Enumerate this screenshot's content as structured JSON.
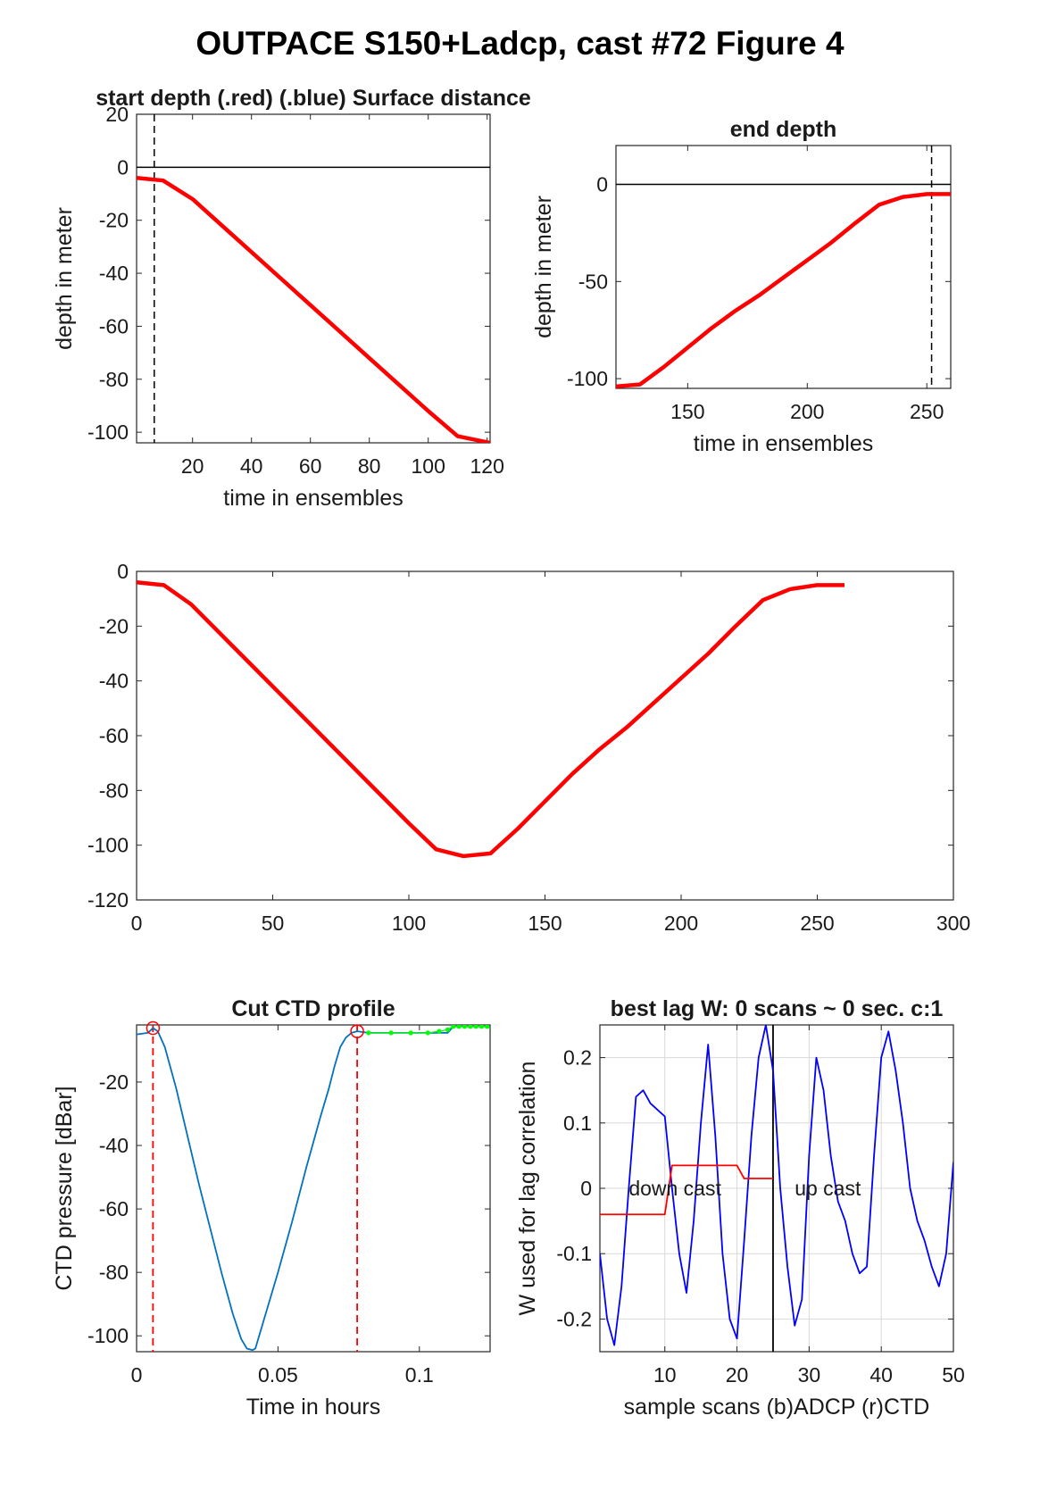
{
  "figure": {
    "title": "OUTPACE S150+Ladcp, cast #72   Figure 4",
    "background": "#ffffff"
  },
  "colors": {
    "depth_line": "#ff0000",
    "ctd_line": "#0072bd",
    "ctd_flag": "#00ff00",
    "adcp_w": "#0000ff",
    "ctd_w": "#ff0000",
    "axis": "#262626",
    "grid": "#d9d9d9"
  },
  "chart_data": [
    {
      "id": "start",
      "type": "line",
      "title": "start depth (.red) (.blue) Surface distance",
      "xlabel": "time in ensembles",
      "ylabel": "depth in meter",
      "xlim": [
        1,
        121
      ],
      "ylim": [
        -104,
        20
      ],
      "xticks": [
        20,
        40,
        60,
        80,
        100,
        120
      ],
      "yticks": [
        20,
        0,
        -20,
        -40,
        -60,
        -80,
        -100
      ],
      "hline": 0,
      "vline_dashed": 7,
      "grid": false,
      "series": [
        {
          "x": [
            1,
            10,
            20,
            30,
            40,
            50,
            60,
            70,
            80,
            90,
            100,
            110,
            121
          ],
          "y": [
            -4,
            -5,
            -12,
            -22,
            -32,
            -42,
            -52,
            -62,
            -72,
            -82,
            -92,
            -101.5,
            -104
          ]
        }
      ]
    },
    {
      "id": "end",
      "type": "line",
      "title": "end depth",
      "xlabel": "time in ensembles",
      "ylabel": "depth in meter",
      "xlim": [
        120,
        260
      ],
      "ylim": [
        -105,
        20
      ],
      "xticks": [
        150,
        200,
        250
      ],
      "yticks": [
        0,
        -50,
        -100
      ],
      "hline": 0,
      "vline_dashed": 252,
      "grid": false,
      "series": [
        {
          "x": [
            120,
            130,
            140,
            150,
            160,
            170,
            180,
            190,
            200,
            210,
            220,
            230,
            240,
            250,
            260
          ],
          "y": [
            -104,
            -103,
            -94,
            -84,
            -74,
            -65,
            -57,
            -48,
            -39,
            -30,
            -20,
            -10.5,
            -6.5,
            -5,
            -5
          ]
        }
      ]
    },
    {
      "id": "full",
      "type": "line",
      "title": "",
      "xlabel": "",
      "ylabel": "",
      "xlim": [
        0,
        300
      ],
      "ylim": [
        -120,
        0
      ],
      "xticks": [
        0,
        50,
        100,
        150,
        200,
        250,
        300
      ],
      "yticks": [
        0,
        -20,
        -40,
        -60,
        -80,
        -100,
        -120
      ],
      "grid": false,
      "series": [
        {
          "x": [
            0,
            10,
            20,
            30,
            40,
            50,
            60,
            70,
            80,
            90,
            100,
            110,
            120,
            130,
            140,
            150,
            160,
            170,
            180,
            190,
            200,
            210,
            220,
            230,
            240,
            250,
            260
          ],
          "y": [
            -4,
            -5,
            -12,
            -22,
            -32,
            -42,
            -52,
            -62,
            -72,
            -82,
            -92,
            -101.5,
            -104,
            -103,
            -94,
            -84,
            -74,
            -65,
            -57,
            -48,
            -39,
            -30,
            -20,
            -10.5,
            -6.5,
            -5,
            -5
          ]
        }
      ]
    },
    {
      "id": "ctd",
      "type": "line",
      "title": "Cut CTD profile",
      "xlabel": "Time in hours",
      "ylabel": "CTD pressure [dBar]",
      "xlim": [
        0,
        0.125
      ],
      "ylim": [
        -105,
        -2
      ],
      "xticks": [
        0,
        0.05,
        0.1
      ],
      "xtick_labels": [
        "0",
        "0.05",
        "0.1"
      ],
      "yticks": [
        -20,
        -40,
        -60,
        -80,
        -100
      ],
      "grid": false,
      "cut_lines": [
        0.0058,
        0.078
      ],
      "series": [
        {
          "x": [
            0,
            0.004,
            0.0058,
            0.0075,
            0.01,
            0.014,
            0.018,
            0.022,
            0.026,
            0.03,
            0.034,
            0.037,
            0.039,
            0.041,
            0.042,
            0.045,
            0.05,
            0.055,
            0.06,
            0.065,
            0.068,
            0.07,
            0.072,
            0.074,
            0.076,
            0.078,
            0.082,
            0.088,
            0.095,
            0.1,
            0.106,
            0.11,
            0.112,
            0.118,
            0.125
          ],
          "y": [
            -5,
            -4.5,
            -3,
            -4,
            -9,
            -22,
            -37,
            -52,
            -66,
            -80,
            -93,
            -101,
            -104,
            -104.5,
            -104,
            -95,
            -80,
            -64,
            -47,
            -31,
            -22,
            -15,
            -9,
            -6,
            -4.5,
            -4,
            -4.5,
            -4.5,
            -4.5,
            -4.5,
            -4.5,
            -4.5,
            -2.5,
            -2.5,
            -2.5
          ]
        },
        {
          "name": "flagged",
          "x": [
            0.082,
            0.09,
            0.097,
            0.103,
            0.107,
            0.11,
            0.112,
            0.114,
            0.116,
            0.118,
            0.12,
            0.122,
            0.124
          ],
          "y": [
            -4.5,
            -4.5,
            -4.5,
            -4.5,
            -4,
            -3.5,
            -2.5,
            -2.5,
            -2.5,
            -2.5,
            -2.5,
            -2.5,
            -2.5
          ]
        }
      ]
    },
    {
      "id": "lag",
      "type": "line",
      "title": "best lag W: 0 scans ~ 0 sec.  c:1",
      "xlabel": "sample scans (b)ADCP (r)CTD",
      "ylabel": "W used for lag correlation",
      "xlim": [
        1,
        50
      ],
      "ylim": [
        -0.25,
        0.25
      ],
      "xticks": [
        10,
        20,
        30,
        40,
        50
      ],
      "yticks": [
        0.2,
        0.1,
        0,
        -0.1,
        -0.2
      ],
      "ytick_labels": [
        "0.2",
        "0.1",
        "0",
        "-0.1",
        "-0.2"
      ],
      "grid": true,
      "vline": 25,
      "annotations": [
        {
          "text": "down cast",
          "x": 5,
          "y": 0
        },
        {
          "text": "up cast",
          "x": 28,
          "y": 0
        }
      ],
      "series": [
        {
          "name": "ADCP",
          "x": [
            1,
            2,
            3,
            4,
            5,
            6,
            7,
            8,
            9,
            10,
            11,
            12,
            13,
            14,
            15,
            16,
            17,
            18,
            19,
            20,
            21,
            22,
            23,
            24,
            25,
            26,
            27,
            28,
            29,
            30,
            31,
            32,
            33,
            34,
            35,
            36,
            37,
            38,
            39,
            40,
            41,
            42,
            43,
            44,
            45,
            46,
            47,
            48,
            49,
            50
          ],
          "y": [
            -0.1,
            -0.2,
            -0.24,
            -0.15,
            0,
            0.14,
            0.15,
            0.13,
            0.12,
            0.11,
            0,
            -0.1,
            -0.16,
            -0.05,
            0.1,
            0.22,
            0.08,
            -0.1,
            -0.2,
            -0.23,
            -0.08,
            0.08,
            0.2,
            0.25,
            0.18,
            0,
            -0.12,
            -0.21,
            -0.17,
            0.05,
            0.2,
            0.15,
            0.05,
            -0.02,
            -0.05,
            -0.1,
            -0.13,
            -0.12,
            0.05,
            0.2,
            0.24,
            0.18,
            0.1,
            0,
            -0.05,
            -0.08,
            -0.12,
            -0.15,
            -0.1,
            0.04
          ]
        },
        {
          "name": "CTD",
          "x": [
            1,
            10,
            11,
            20,
            21,
            25
          ],
          "y": [
            -0.04,
            -0.04,
            0.035,
            0.035,
            0.015,
            0.015
          ]
        }
      ]
    }
  ]
}
